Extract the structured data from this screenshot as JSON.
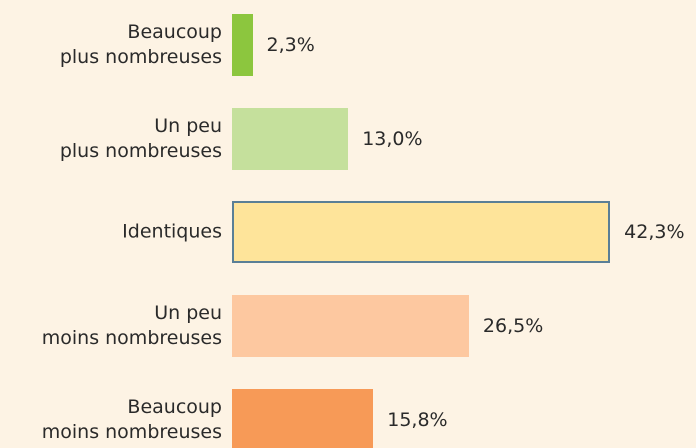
{
  "chart_data": {
    "type": "barh",
    "categories": [
      "Beaucoup\nplus nombreuses",
      "Un peu\nplus nombreuses",
      "Identiques",
      "Un peu\nmoins nombreuses",
      "Beaucoup\nmoins nombreuses"
    ],
    "values": [
      2.3,
      13.0,
      42.3,
      26.5,
      15.8
    ],
    "value_labels": [
      "2,3%",
      "13,0%",
      "42,3%",
      "26,5%",
      "15,8%"
    ],
    "colors": [
      "#8cc63e",
      "#c5e09c",
      "#fee49a",
      "#fdc8a0",
      "#f79a57"
    ],
    "edgecolors": [
      null,
      null,
      "#5a7f96",
      null,
      null
    ]
  }
}
